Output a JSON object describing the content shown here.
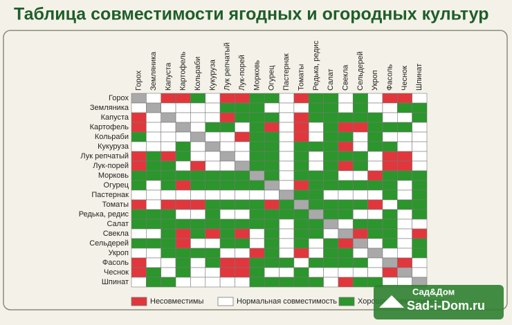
{
  "title": "Таблица совместимости ягодных и огородных культур",
  "crops": [
    "Горох",
    "Земляника",
    "Капуста",
    "Картофель",
    "Кольраби",
    "Кукуруза",
    "Лук репчатый",
    "Лук-порей",
    "Морковь",
    "Огурец",
    "Пастернак",
    "Томаты",
    "Редька, редис",
    "Салат",
    "Свекла",
    "Сельдерей",
    "Укроп",
    "Фасоль",
    "Чеснок",
    "Шпинат"
  ],
  "legend": [
    {
      "label": "Несовместимы",
      "color": "#e1373c"
    },
    {
      "label": "Нормальная совместимость",
      "color": "#ffffff"
    },
    {
      "label": "Хорошая совместимость",
      "color": "#2b962b"
    }
  ],
  "diagonal_color": "#a9a9a9",
  "matrix": [
    [
      null,
      1,
      0,
      0,
      2,
      1,
      0,
      0,
      2,
      2,
      1,
      0,
      2,
      2,
      1,
      2,
      1,
      0,
      0,
      1
    ],
    [
      1,
      null,
      1,
      1,
      1,
      1,
      2,
      2,
      2,
      1,
      1,
      1,
      2,
      2,
      1,
      2,
      1,
      1,
      2,
      2
    ],
    [
      0,
      1,
      null,
      1,
      1,
      1,
      0,
      2,
      2,
      2,
      1,
      0,
      2,
      2,
      2,
      2,
      2,
      1,
      1,
      2
    ],
    [
      0,
      1,
      1,
      null,
      1,
      2,
      2,
      1,
      2,
      0,
      1,
      0,
      1,
      2,
      0,
      0,
      2,
      2,
      2,
      1
    ],
    [
      2,
      1,
      1,
      1,
      null,
      1,
      1,
      0,
      2,
      2,
      1,
      0,
      1,
      2,
      2,
      1,
      2,
      1,
      1,
      1
    ],
    [
      1,
      1,
      1,
      2,
      1,
      null,
      1,
      1,
      2,
      2,
      1,
      2,
      2,
      2,
      0,
      1,
      2,
      2,
      1,
      1
    ],
    [
      0,
      2,
      0,
      2,
      1,
      1,
      null,
      1,
      2,
      2,
      1,
      2,
      1,
      2,
      2,
      2,
      1,
      0,
      0,
      1
    ],
    [
      0,
      2,
      2,
      1,
      0,
      1,
      1,
      null,
      2,
      2,
      1,
      2,
      1,
      2,
      0,
      2,
      1,
      0,
      0,
      1
    ],
    [
      2,
      2,
      2,
      2,
      2,
      2,
      2,
      2,
      null,
      2,
      1,
      2,
      2,
      2,
      1,
      1,
      0,
      2,
      2,
      2
    ],
    [
      2,
      1,
      2,
      0,
      2,
      2,
      2,
      2,
      2,
      null,
      1,
      0,
      2,
      2,
      2,
      2,
      2,
      2,
      1,
      2
    ],
    [
      1,
      1,
      1,
      1,
      1,
      1,
      1,
      1,
      1,
      1,
      null,
      2,
      2,
      1,
      1,
      1,
      1,
      2,
      1,
      2
    ],
    [
      0,
      1,
      0,
      0,
      0,
      2,
      2,
      2,
      2,
      0,
      2,
      null,
      2,
      2,
      2,
      2,
      0,
      1,
      2,
      2
    ],
    [
      2,
      2,
      2,
      1,
      1,
      2,
      1,
      1,
      2,
      2,
      2,
      2,
      null,
      2,
      2,
      1,
      1,
      2,
      1,
      2
    ],
    [
      2,
      2,
      2,
      2,
      2,
      2,
      2,
      2,
      2,
      2,
      1,
      2,
      2,
      null,
      1,
      2,
      2,
      2,
      1,
      1
    ],
    [
      1,
      1,
      2,
      0,
      2,
      0,
      2,
      0,
      1,
      2,
      1,
      2,
      2,
      1,
      null,
      0,
      2,
      2,
      1,
      0
    ],
    [
      2,
      2,
      2,
      0,
      1,
      1,
      2,
      2,
      1,
      2,
      1,
      2,
      1,
      2,
      0,
      null,
      1,
      2,
      1,
      2
    ],
    [
      1,
      1,
      2,
      2,
      2,
      2,
      1,
      1,
      0,
      2,
      1,
      0,
      1,
      2,
      2,
      1,
      null,
      1,
      1,
      2
    ],
    [
      0,
      1,
      1,
      2,
      1,
      2,
      0,
      0,
      2,
      2,
      2,
      1,
      2,
      2,
      2,
      2,
      1,
      null,
      0,
      1
    ],
    [
      0,
      2,
      1,
      2,
      1,
      1,
      0,
      0,
      2,
      1,
      1,
      2,
      1,
      1,
      1,
      1,
      1,
      0,
      null,
      1
    ],
    [
      1,
      2,
      2,
      1,
      1,
      1,
      1,
      1,
      2,
      2,
      2,
      2,
      2,
      1,
      0,
      2,
      2,
      1,
      1,
      null
    ]
  ],
  "watermark": {
    "line1": "Сад&Дом",
    "line2": "Sad-i-Dom.ru"
  }
}
